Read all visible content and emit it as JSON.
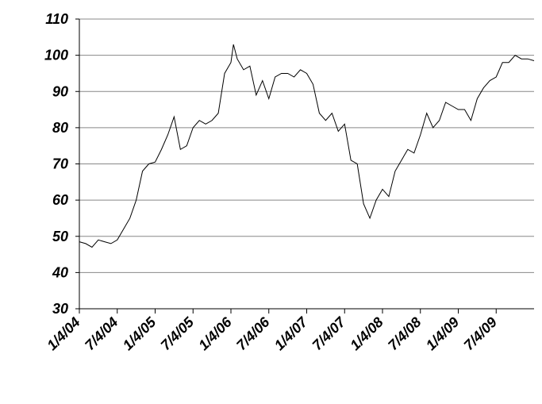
{
  "chart_data": {
    "type": "line",
    "x": [
      0,
      1,
      2,
      3,
      4,
      5,
      6,
      7,
      8,
      9,
      10,
      11,
      12,
      13,
      14,
      15,
      16,
      17,
      18,
      19,
      20,
      21,
      22,
      23,
      24,
      24.4,
      25,
      26,
      27,
      28,
      29,
      30,
      31,
      32,
      33,
      34,
      35,
      36,
      37,
      38,
      39,
      40,
      41,
      42,
      43,
      44,
      45,
      46,
      47,
      48,
      49,
      50,
      51,
      52,
      53,
      54,
      55,
      56,
      57,
      58,
      59,
      60,
      61,
      62,
      63,
      64,
      65,
      66,
      67,
      68,
      69,
      70,
      71,
      72
    ],
    "series": [
      {
        "color": "#000000",
        "values": [
          48.5,
          48,
          47,
          49,
          48.5,
          48,
          49,
          52,
          55,
          60,
          68,
          70,
          70.5,
          74,
          78,
          83,
          74,
          75,
          80,
          82,
          81,
          82,
          84,
          95,
          98,
          103,
          99,
          96,
          97,
          89,
          93,
          88,
          94,
          95,
          95,
          94,
          96,
          95,
          92,
          84,
          82,
          84,
          79,
          81,
          71,
          70,
          59,
          55,
          60,
          63,
          61,
          68,
          71,
          74,
          73,
          78,
          84,
          80,
          82,
          87,
          86,
          85,
          85,
          82,
          88,
          91,
          93,
          94,
          98,
          98,
          100,
          99,
          99,
          98.5
        ]
      }
    ],
    "xlim": [
      0,
      72
    ],
    "xticks": [
      {
        "value": 0,
        "label": "1/4/04"
      },
      {
        "value": 6,
        "label": "7/4/04"
      },
      {
        "value": 12,
        "label": "1/4/05"
      },
      {
        "value": 18,
        "label": "7/4/05"
      },
      {
        "value": 24,
        "label": "1/4/06"
      },
      {
        "value": 30,
        "label": "7/4/06"
      },
      {
        "value": 36,
        "label": "1/4/07"
      },
      {
        "value": 42,
        "label": "7/4/07"
      },
      {
        "value": 48,
        "label": "1/4/08"
      },
      {
        "value": 54,
        "label": "7/4/08"
      },
      {
        "value": 60,
        "label": "1/4/09"
      },
      {
        "value": 66,
        "label": "7/4/09"
      }
    ],
    "ylim": [
      30,
      110
    ],
    "yticks": [
      30,
      40,
      50,
      60,
      70,
      80,
      90,
      100,
      110
    ],
    "grid": true
  }
}
